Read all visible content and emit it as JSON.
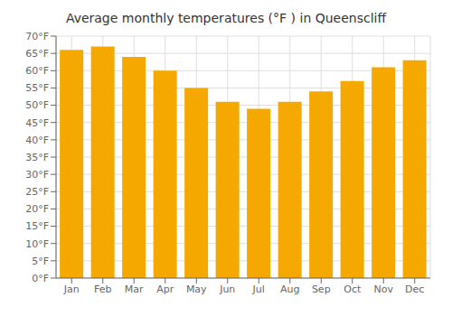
{
  "chart_data": {
    "type": "bar",
    "title": "Average monthly temperatures (°F ) in Queenscliff",
    "categories": [
      "Jan",
      "Feb",
      "Mar",
      "Apr",
      "May",
      "Jun",
      "Jul",
      "Aug",
      "Sep",
      "Oct",
      "Nov",
      "Dec"
    ],
    "values": [
      66,
      67,
      64,
      60,
      55,
      51,
      49,
      51,
      54,
      57,
      61,
      63
    ],
    "color": "#F5A800",
    "ylim": [
      0,
      70
    ],
    "yticks": [
      {
        "value": 0,
        "label": "0°F"
      },
      {
        "value": 5,
        "label": "5°F"
      },
      {
        "value": 10,
        "label": "10°F"
      },
      {
        "value": 15,
        "label": "15°F"
      },
      {
        "value": 20,
        "label": "20°F"
      },
      {
        "value": 25,
        "label": "25°F"
      },
      {
        "value": 30,
        "label": "30°F"
      },
      {
        "value": 35,
        "label": "35°F"
      },
      {
        "value": 40,
        "label": "40°F"
      },
      {
        "value": 45,
        "label": "45°F"
      },
      {
        "value": 50,
        "label": "50°F"
      },
      {
        "value": 55,
        "label": "55°F"
      },
      {
        "value": 60,
        "label": "60°F"
      },
      {
        "value": 65,
        "label": "65°F"
      },
      {
        "value": 70,
        "label": "70°F"
      }
    ],
    "grid": true
  }
}
